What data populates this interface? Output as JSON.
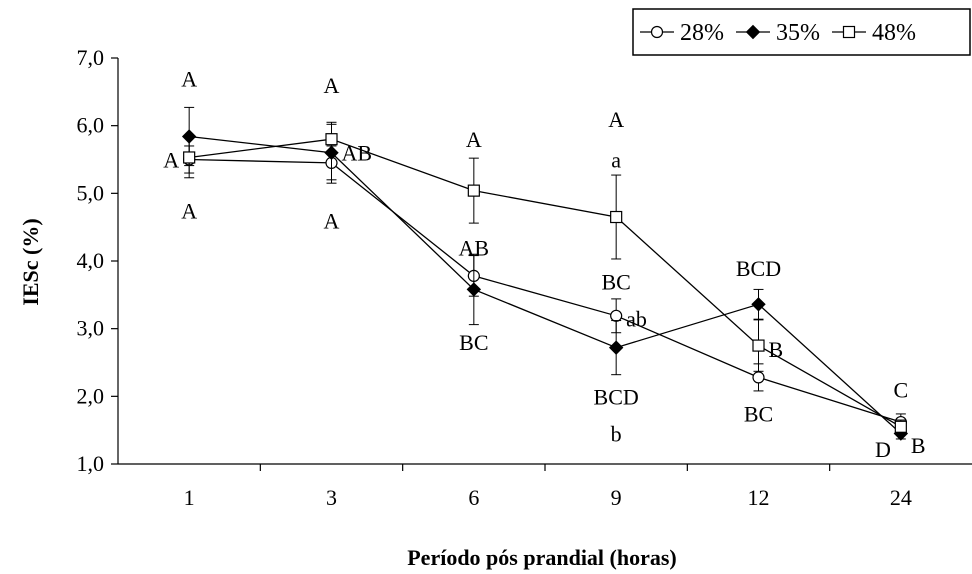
{
  "chart_data": {
    "type": "line",
    "xlabel": "Período pós prandial (horas)",
    "ylabel": "IESc (%)",
    "ylim": [
      1.0,
      7.0
    ],
    "yticks": [
      "1,0",
      "2,0",
      "3,0",
      "4,0",
      "5,0",
      "6,0",
      "7,0"
    ],
    "categories": [
      "1",
      "3",
      "6",
      "9",
      "12",
      "24"
    ],
    "legend_position": "top-right",
    "grid": false,
    "series": [
      {
        "name": "28%",
        "marker": "circle",
        "values": [
          5.5,
          5.45,
          3.78,
          3.19,
          2.28,
          1.62
        ],
        "errors": [
          0.2,
          0.25,
          0.3,
          0.25,
          0.2,
          0.12
        ]
      },
      {
        "name": "35%",
        "marker": "diamond",
        "values": [
          5.84,
          5.6,
          3.58,
          2.72,
          3.36,
          1.45
        ],
        "errors": [
          0.43,
          0.45,
          0.52,
          0.4,
          0.22,
          0.08
        ]
      },
      {
        "name": "48%",
        "marker": "square",
        "values": [
          5.53,
          5.8,
          5.04,
          4.65,
          2.75,
          1.55
        ],
        "errors": [
          0.3,
          0.22,
          0.48,
          0.62,
          0.38,
          0.1
        ]
      }
    ],
    "annotations": [
      {
        "text": "A",
        "x": "1",
        "y": 6.7
      },
      {
        "text": "A",
        "x": "1",
        "y": 5.5,
        "align": "left"
      },
      {
        "text": "A",
        "x": "1",
        "y": 4.75
      },
      {
        "text": "A",
        "x": "3",
        "y": 6.6
      },
      {
        "text": "AB",
        "x": "3",
        "y": 5.6,
        "align": "right"
      },
      {
        "text": "A",
        "x": "3",
        "y": 4.6
      },
      {
        "text": "A",
        "x": "6",
        "y": 5.8
      },
      {
        "text": "AB",
        "x": "6",
        "y": 4.2
      },
      {
        "text": "BC",
        "x": "6",
        "y": 2.8
      },
      {
        "text": "A",
        "x": "9",
        "y": 6.1
      },
      {
        "text": "a",
        "x": "9",
        "y": 5.5
      },
      {
        "text": "BC",
        "x": "9",
        "y": 3.7
      },
      {
        "text": "ab",
        "x": "9",
        "y": 3.15,
        "align": "right"
      },
      {
        "text": "BCD",
        "x": "9",
        "y": 2.0
      },
      {
        "text": "b",
        "x": "9",
        "y": 1.45
      },
      {
        "text": "BCD",
        "x": "12",
        "y": 3.9
      },
      {
        "text": "B",
        "x": "12",
        "y": 2.7,
        "align": "right"
      },
      {
        "text": "BC",
        "x": "12",
        "y": 1.75
      },
      {
        "text": "C",
        "x": "24",
        "y": 2.1
      },
      {
        "text": "D",
        "x": "24",
        "y": 1.22,
        "align": "left"
      },
      {
        "text": "B",
        "x": "24",
        "y": 1.28,
        "align": "right"
      }
    ]
  }
}
